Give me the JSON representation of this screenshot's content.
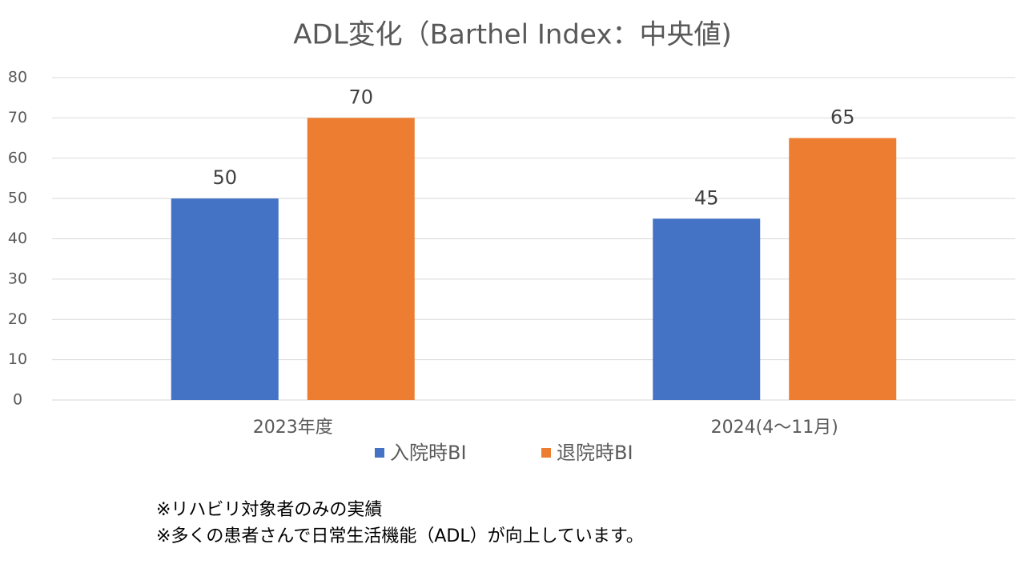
{
  "chart_data": {
    "type": "bar",
    "title": "ADL変化（Barthel Index：中央値)",
    "categories": [
      "2023年度",
      "2024(4～11月)"
    ],
    "series": [
      {
        "name": "入院時BI",
        "color": "#4472c4",
        "values": [
          50,
          45
        ]
      },
      {
        "name": "退院時BI",
        "color": "#ed7d31",
        "values": [
          70,
          65
        ]
      }
    ],
    "ylim": [
      0,
      80
    ],
    "yticks": [
      0,
      10,
      20,
      30,
      40,
      50,
      60,
      70,
      80
    ],
    "grid": true,
    "legend": "bottom"
  },
  "notes": [
    "※リハビリ対象者のみの実績",
    "※多くの患者さんで日常生活機能（ADL）が向上しています。"
  ]
}
